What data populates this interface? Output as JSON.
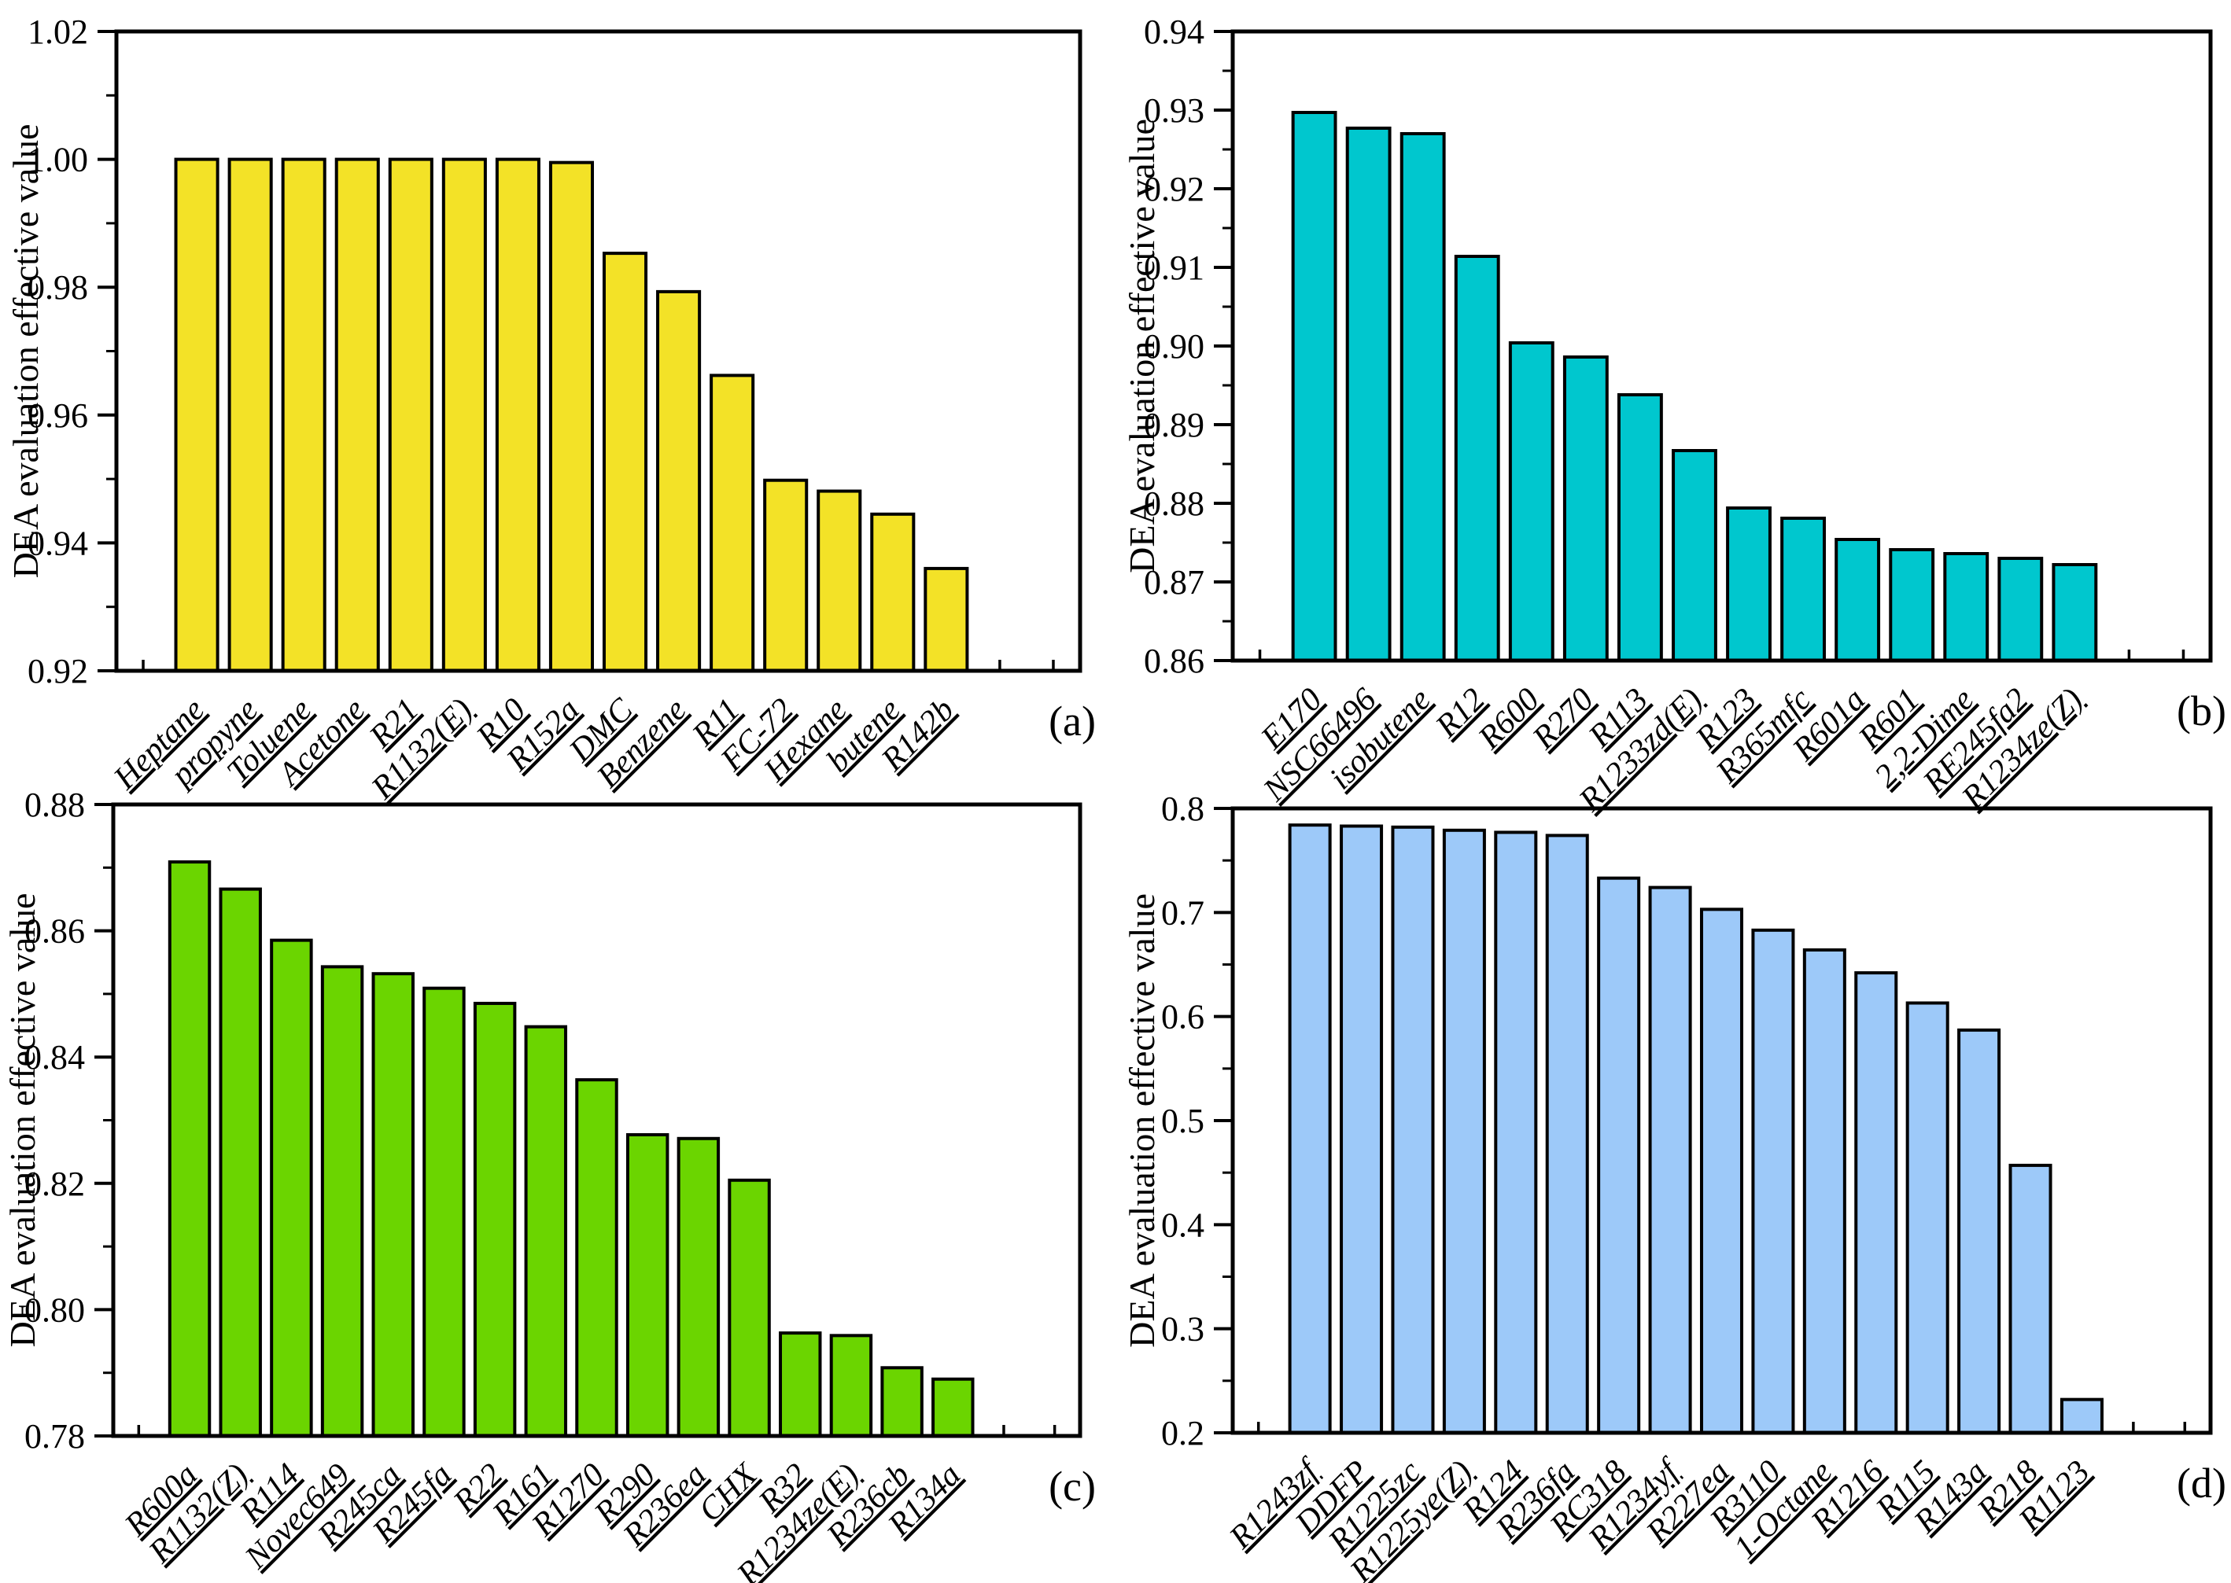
{
  "figure": {
    "ylabel": "DEA evaluation effective value",
    "panel_letters": [
      "(a)",
      "(b)",
      "(c)",
      "(d)"
    ]
  },
  "chart_data": [
    {
      "type": "bar",
      "panel_label": "(a)",
      "title": "",
      "xlabel": "",
      "ylabel": "DEA evaluation effective value",
      "bar_color": "#F3E227",
      "ylim": [
        0.92,
        1.02
      ],
      "ytick_step": 0.02,
      "minor_tick_step": 0.01,
      "ytick_decimals": 2,
      "grid": false,
      "legend": false,
      "categories": [
        "Heptane",
        "propyne",
        "Toluene",
        "Acetone",
        "R21",
        "R1132(E)",
        "R10",
        "R152a",
        "DMC",
        "Benzene",
        "R11",
        "FC-72",
        "Hexane",
        "butene",
        "R142b"
      ],
      "values": [
        1.0,
        1.0,
        1.0,
        1.0,
        1.0,
        1.0,
        1.0,
        0.9995,
        0.9853,
        0.9793,
        0.9662,
        0.9498,
        0.9481,
        0.9445,
        0.936
      ]
    },
    {
      "type": "bar",
      "panel_label": "(b)",
      "title": "",
      "xlabel": "",
      "ylabel": "DEA evaluation effective value",
      "bar_color": "#00C7CE",
      "ylim": [
        0.86,
        0.94
      ],
      "ytick_step": 0.01,
      "minor_tick_step": 0.005,
      "ytick_decimals": 2,
      "grid": false,
      "legend": false,
      "categories": [
        "E170",
        "NSC66496",
        "isobutene",
        "R12",
        "R600",
        "R270",
        "R113",
        "R1233zd(E)",
        "R123",
        "R365mfc",
        "R601a",
        "R601",
        "2,2-Dime",
        "RE245fa2",
        "R1234ze(Z)"
      ],
      "values": [
        0.9297,
        0.9277,
        0.927,
        0.9114,
        0.9004,
        0.8986,
        0.8938,
        0.8867,
        0.8794,
        0.8781,
        0.8754,
        0.8741,
        0.8736,
        0.873,
        0.8722
      ]
    },
    {
      "type": "bar",
      "panel_label": "(c)",
      "title": "",
      "xlabel": "",
      "ylabel": "DEA evaluation effective value",
      "bar_color": "#6BD500",
      "ylim": [
        0.78,
        0.88
      ],
      "ytick_step": 0.02,
      "minor_tick_step": 0.01,
      "ytick_decimals": 2,
      "grid": false,
      "legend": false,
      "categories": [
        "R600a",
        "R1132(Z)",
        "R114",
        "Novec649",
        "R245ca",
        "R245fa",
        "R22",
        "R161",
        "R1270",
        "R290",
        "R236ea",
        "CHX",
        "R32",
        "R1234ze(E)",
        "R236cb",
        "R134a"
      ],
      "values": [
        0.8709,
        0.8666,
        0.8585,
        0.8543,
        0.8532,
        0.8509,
        0.8485,
        0.8448,
        0.8364,
        0.8277,
        0.8271,
        0.8205,
        0.7963,
        0.7959,
        0.7908,
        0.789
      ]
    },
    {
      "type": "bar",
      "panel_label": "(d)",
      "title": "",
      "xlabel": "",
      "ylabel": "DEA evaluation effective value",
      "bar_color": "#9DC9F9",
      "ylim": [
        0.2,
        0.8
      ],
      "ytick_step": 0.1,
      "minor_tick_step": 0.05,
      "ytick_decimals": 1,
      "grid": false,
      "legend": false,
      "categories": [
        "R1243zf",
        "DDFP",
        "R1225zc",
        "R1225ye(Z)",
        "R124",
        "R236fa",
        "RC318",
        "R1234yf",
        "R227ea",
        "R3110",
        "1-Octane",
        "R1216",
        "R115",
        "R143a",
        "R218",
        "R1123"
      ],
      "values": [
        0.784,
        0.783,
        0.782,
        0.779,
        0.777,
        0.774,
        0.733,
        0.724,
        0.703,
        0.683,
        0.664,
        0.642,
        0.613,
        0.587,
        0.457,
        0.232
      ]
    }
  ]
}
